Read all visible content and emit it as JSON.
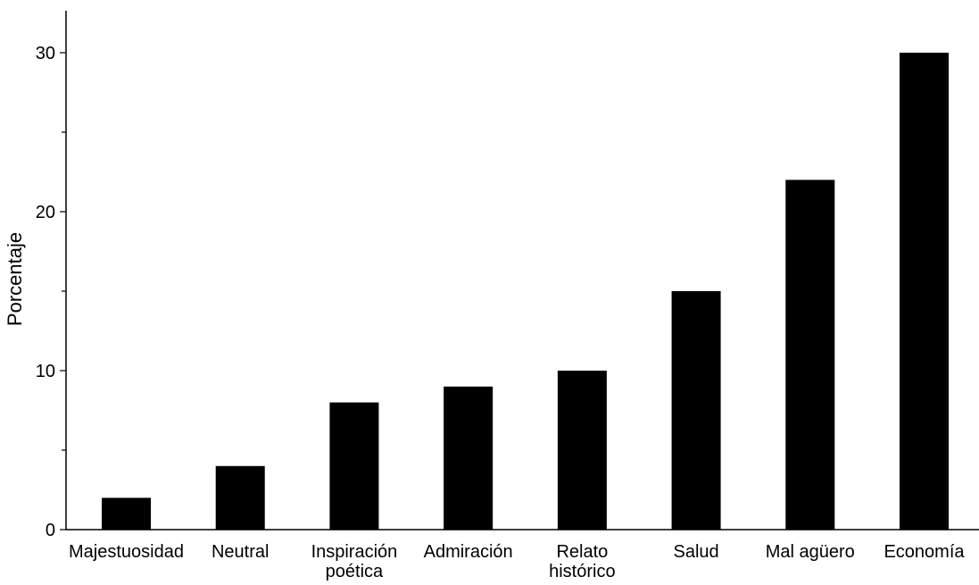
{
  "chart_data": {
    "type": "bar",
    "title": "",
    "xlabel": "",
    "ylabel": "Porcentaje",
    "categories": [
      [
        "Majestuosidad"
      ],
      [
        "Neutral"
      ],
      [
        "Inspiración",
        "poética"
      ],
      [
        "Admiración"
      ],
      [
        "Relato",
        "histórico"
      ],
      [
        "Salud"
      ],
      [
        "Mal agüero"
      ],
      [
        "Economía"
      ]
    ],
    "values": [
      2,
      4,
      8,
      9,
      10,
      15,
      22,
      30
    ],
    "ylim": [
      0,
      33
    ],
    "major_ticks": [
      0,
      10,
      20,
      30
    ],
    "minor_ticks": [
      5,
      15,
      25
    ],
    "grid": false,
    "legend": "none",
    "bar_color": "#000000"
  }
}
